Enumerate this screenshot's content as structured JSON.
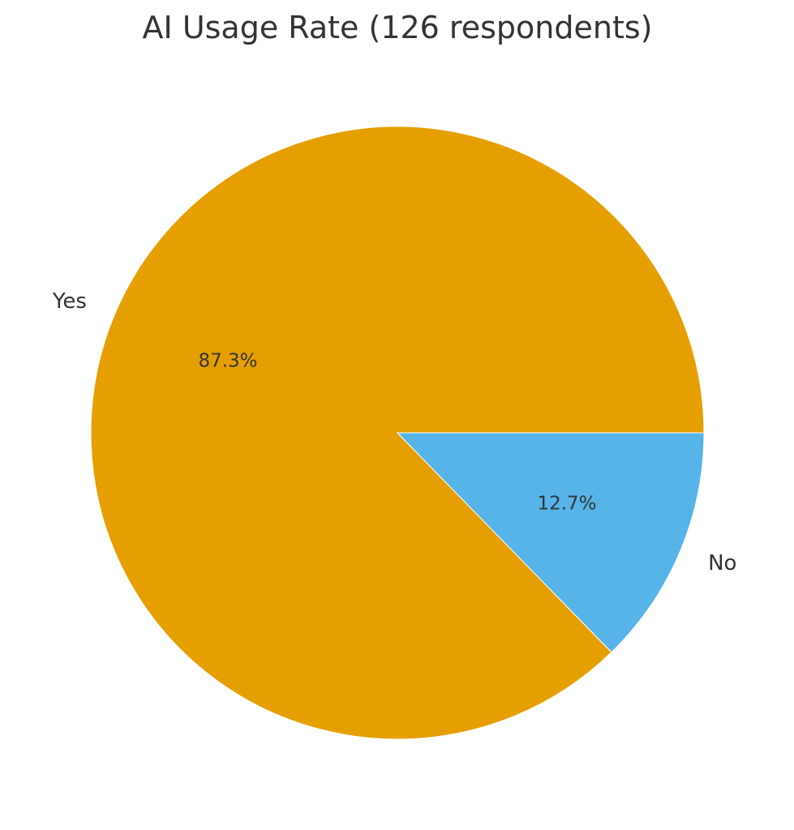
{
  "chart_data": {
    "type": "pie",
    "title": "AI Usage Rate (126 respondents)",
    "slices": [
      {
        "label": "Yes",
        "percent": 87.3,
        "percent_label": "87.3%",
        "color": "#E69F00"
      },
      {
        "label": "No",
        "percent": 12.7,
        "percent_label": "12.7%",
        "color": "#56B4E9"
      }
    ],
    "start_angle": "0 degrees (3 o'clock)",
    "direction": "counterclockwise",
    "label_color": "#333333",
    "legend": "none"
  }
}
